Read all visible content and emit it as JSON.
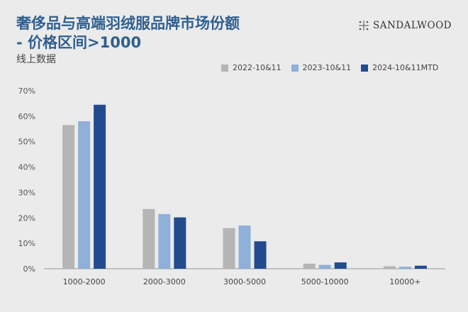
{
  "header": {
    "title_line1": "奢侈品与高端羽绒服品牌市场份额",
    "title_line2": "- 价格区间>1000",
    "subtitle": "线上数据",
    "brand": "SANDALWOOD"
  },
  "colors": {
    "title": "#2f5f8f",
    "background": "#ebebeb",
    "series": [
      "#b5b5b5",
      "#8fb0d8",
      "#224b8f"
    ]
  },
  "icons": {
    "brand_mark": "sandalwood-logo-icon"
  },
  "chart_data": {
    "type": "bar",
    "categories": [
      "1000-2000",
      "2000-3000",
      "3000-5000",
      "5000-10000",
      "10000+"
    ],
    "series": [
      {
        "name": "2022-10&11",
        "values": [
          56.5,
          23.5,
          16.0,
          2.0,
          1.0
        ]
      },
      {
        "name": "2023-10&11",
        "values": [
          58.0,
          21.5,
          17.0,
          1.5,
          0.8
        ]
      },
      {
        "name": "2024-10&11MTD",
        "values": [
          64.5,
          20.2,
          10.8,
          2.5,
          1.2
        ]
      }
    ],
    "ylim": [
      0,
      70
    ],
    "yticks": [
      "0%",
      "10%",
      "20%",
      "30%",
      "40%",
      "50%",
      "60%",
      "70%"
    ],
    "grid": false,
    "legend_position": "top-right"
  }
}
